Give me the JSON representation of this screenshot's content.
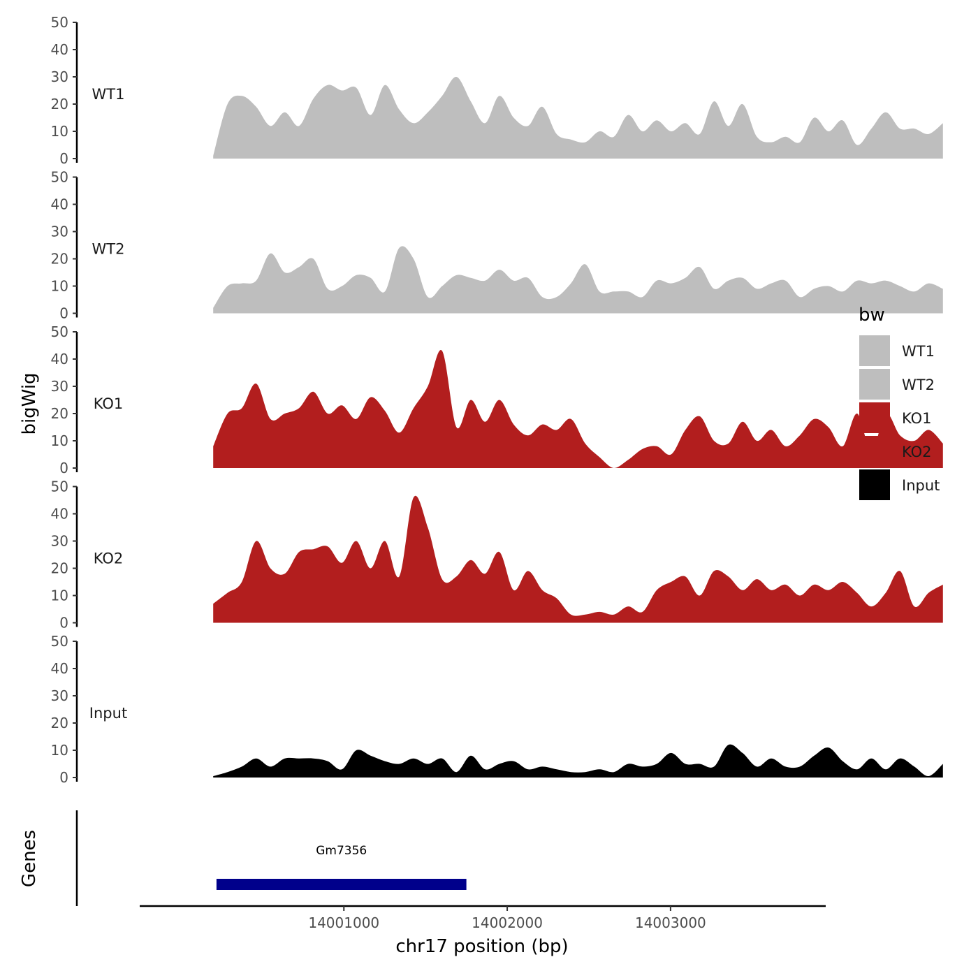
{
  "chart_data": {
    "type": "area",
    "title": "",
    "xlabel": "chr17 position (bp)",
    "ylabel": "bigWig",
    "ylim": [
      0,
      50
    ],
    "yticks": [
      0,
      10,
      20,
      30,
      40,
      50
    ],
    "xlim": [
      13999750,
      14003950
    ],
    "xticks": [
      14001000,
      14002000,
      14003000
    ],
    "xtick_labels": [
      "14001000",
      "14002000",
      "14003000"
    ],
    "x_start": 14000200,
    "x_step": 87.6,
    "grid": false,
    "legend": {
      "title": "bw",
      "placement": "right",
      "entries": [
        {
          "label": "WT1",
          "color": "#bebebe"
        },
        {
          "label": "WT2",
          "color": "#bebebe"
        },
        {
          "label": "KO1",
          "color": "#b21e1e"
        },
        {
          "label": "KO2",
          "color": "#b21e1e"
        },
        {
          "label": "Input",
          "color": "#000000"
        }
      ]
    },
    "series": [
      {
        "name": "WT1",
        "color": "#bebebe",
        "values": [
          1,
          20,
          23,
          19,
          12,
          17,
          12,
          22,
          27,
          25,
          26,
          16,
          27,
          18,
          13,
          17,
          23,
          30,
          21,
          13,
          23,
          15,
          12,
          19,
          9,
          7,
          6,
          10,
          8,
          16,
          10,
          14,
          10,
          13,
          9,
          21,
          12,
          20,
          8,
          6,
          8,
          6,
          15,
          10,
          14,
          5,
          11,
          17,
          11,
          11,
          9,
          13
        ]
      },
      {
        "name": "WT2",
        "color": "#bebebe",
        "values": [
          2,
          10,
          11,
          12,
          22,
          15,
          17,
          20,
          9,
          10,
          14,
          13,
          8,
          24,
          20,
          6,
          10,
          14,
          13,
          12,
          16,
          12,
          13,
          6,
          6,
          11,
          18,
          8,
          8,
          8,
          6,
          12,
          11,
          13,
          17,
          9,
          12,
          13,
          9,
          11,
          12,
          6,
          9,
          10,
          8,
          12,
          11,
          12,
          10,
          8,
          11,
          9
        ]
      },
      {
        "name": "KO1",
        "color": "#b21e1e",
        "values": [
          8,
          20,
          22,
          31,
          18,
          20,
          22,
          28,
          20,
          23,
          18,
          26,
          21,
          13,
          22,
          30,
          43,
          15,
          25,
          17,
          25,
          16,
          12,
          16,
          14,
          18,
          9,
          4,
          0,
          3,
          7,
          8,
          5,
          14,
          19,
          10,
          9,
          17,
          10,
          14,
          8,
          12,
          18,
          15,
          8,
          20,
          6,
          20,
          12,
          10,
          14,
          9
        ]
      },
      {
        "name": "KO2",
        "color": "#b21e1e",
        "values": [
          7,
          11,
          15,
          30,
          20,
          18,
          26,
          27,
          28,
          22,
          30,
          20,
          30,
          17,
          46,
          35,
          16,
          17,
          23,
          18,
          26,
          12,
          19,
          12,
          9,
          3,
          3,
          4,
          3,
          6,
          4,
          12,
          15,
          17,
          10,
          19,
          17,
          12,
          16,
          12,
          14,
          10,
          14,
          12,
          15,
          11,
          6,
          11,
          19,
          6,
          11,
          14
        ]
      },
      {
        "name": "Input",
        "color": "#000000",
        "values": [
          0.5,
          2,
          4,
          7,
          4,
          7,
          7,
          7,
          6,
          3,
          10,
          8,
          6,
          5,
          7,
          5,
          7,
          2,
          8,
          3,
          5,
          6,
          3,
          4,
          3,
          2,
          2,
          3,
          2,
          5,
          4,
          5,
          9,
          5,
          5,
          4,
          12,
          9,
          4,
          7,
          4,
          4,
          8,
          11,
          6,
          3,
          7,
          3,
          7,
          4,
          0.5,
          5
        ]
      }
    ],
    "gene_track": {
      "label": "Genes",
      "genes": [
        {
          "name": "Gm7356",
          "start": 14000220,
          "end": 14001750,
          "color": "#00008b"
        }
      ]
    }
  }
}
